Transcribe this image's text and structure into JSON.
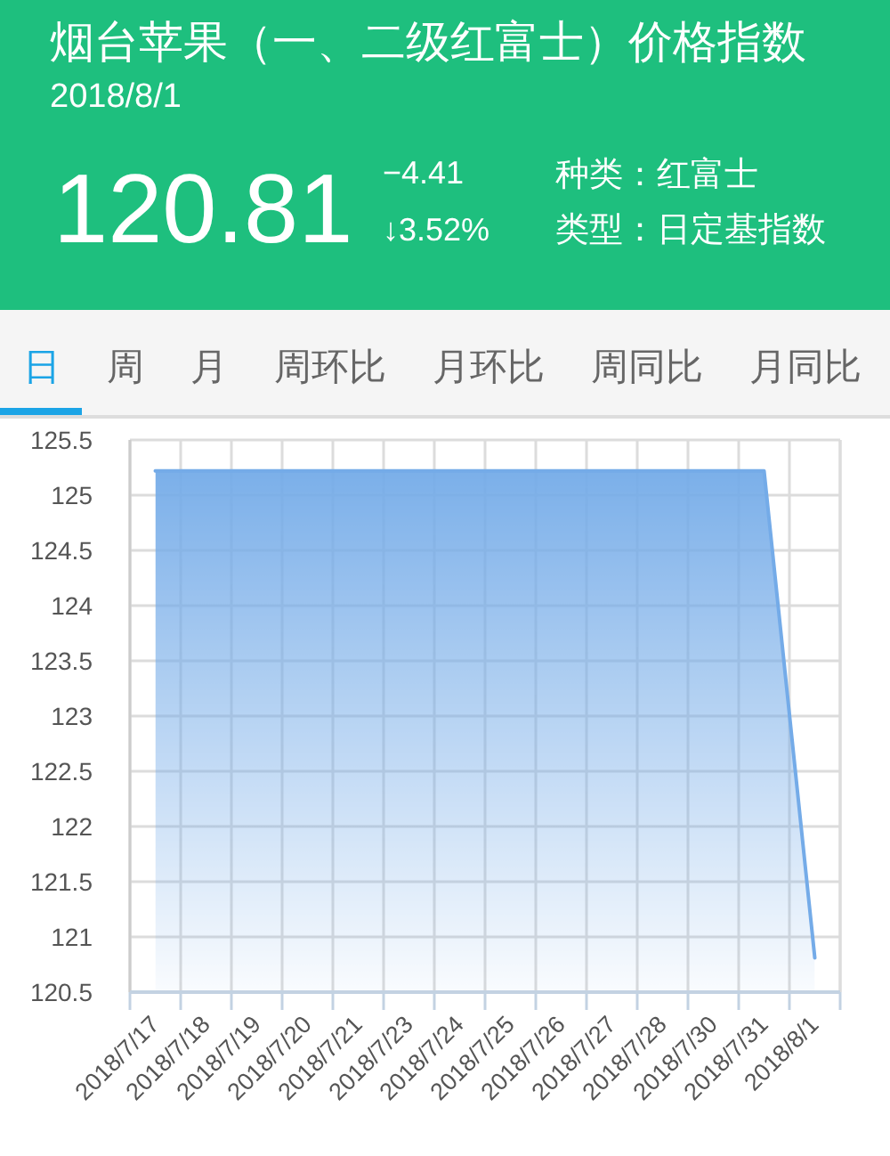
{
  "chart_data": {
    "type": "area",
    "title": "烟台苹果（一、二级红富士）价格指数",
    "subtitle": "2018/8/1",
    "annotations": [
      "120.81",
      "−4.41",
      "↓3.52%",
      "种类：红富士",
      "类型：日定基指数",
      "日",
      "周",
      "月",
      "周环比",
      "月环比",
      "周同比",
      "月同比"
    ],
    "categories": [
      "2018/7/17",
      "2018/7/18",
      "2018/7/19",
      "2018/7/20",
      "2018/7/21",
      "2018/7/23",
      "2018/7/24",
      "2018/7/25",
      "2018/7/26",
      "2018/7/27",
      "2018/7/28",
      "2018/7/30",
      "2018/7/31",
      "2018/8/1"
    ],
    "series": [
      {
        "color": "#74abe8",
        "values": [
          125.22,
          125.22,
          125.22,
          125.22,
          125.22,
          125.22,
          125.22,
          125.22,
          125.22,
          125.22,
          125.22,
          125.22,
          125.22,
          120.81
        ]
      }
    ],
    "ylim": [
      120.5,
      125.5
    ],
    "yticks": [
      120.5,
      121,
      121.5,
      122,
      122.5,
      123,
      123.5,
      124,
      124.5,
      125,
      125.5
    ],
    "grid": true
  }
}
